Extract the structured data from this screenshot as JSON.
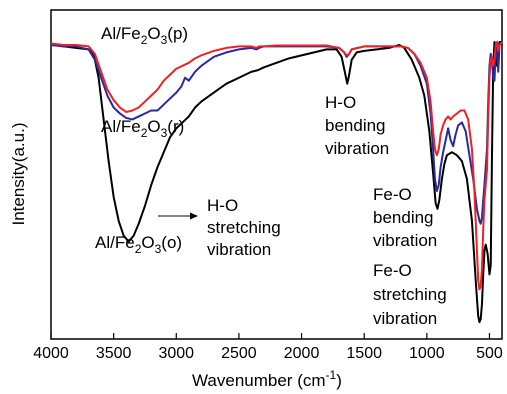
{
  "chart_data": {
    "type": "line",
    "title": "",
    "xlabel": "Wavenumber (cm",
    "xlabel_sup": "-1",
    "xlabel_end": ")",
    "ylabel": "Intensity(a.u.)",
    "xlim": [
      4000,
      400
    ],
    "x_reversed": true,
    "ylim": [
      0,
      1
    ],
    "y_ticks_labeled": false,
    "grid": false,
    "x_ticks": [
      {
        "value": 4000,
        "label": "4000"
      },
      {
        "value": 3500,
        "label": "3500"
      },
      {
        "value": 3000,
        "label": "3000"
      },
      {
        "value": 2500,
        "label": "2500"
      },
      {
        "value": 2000,
        "label": "2000"
      },
      {
        "value": 1500,
        "label": "1500"
      },
      {
        "value": 1000,
        "label": "1000"
      },
      {
        "value": 500,
        "label": "500"
      }
    ],
    "series": [
      {
        "color": "#000000",
        "points": [
          [
            4000,
            0.97
          ],
          [
            3900,
            0.965
          ],
          [
            3800,
            0.96
          ],
          [
            3700,
            0.955
          ],
          [
            3660,
            0.94
          ],
          [
            3620,
            0.86
          ],
          [
            3580,
            0.72
          ],
          [
            3540,
            0.58
          ],
          [
            3500,
            0.46
          ],
          [
            3460,
            0.38
          ],
          [
            3420,
            0.33
          ],
          [
            3380,
            0.31
          ],
          [
            3340,
            0.33
          ],
          [
            3300,
            0.37
          ],
          [
            3250,
            0.43
          ],
          [
            3200,
            0.5
          ],
          [
            3150,
            0.56
          ],
          [
            3100,
            0.61
          ],
          [
            3050,
            0.66
          ],
          [
            3000,
            0.69
          ],
          [
            2950,
            0.71
          ],
          [
            2900,
            0.73
          ],
          [
            2850,
            0.76
          ],
          [
            2800,
            0.78
          ],
          [
            2700,
            0.81
          ],
          [
            2600,
            0.84
          ],
          [
            2500,
            0.86
          ],
          [
            2400,
            0.88
          ],
          [
            2350,
            0.885
          ],
          [
            2300,
            0.895
          ],
          [
            2200,
            0.91
          ],
          [
            2100,
            0.925
          ],
          [
            2000,
            0.935
          ],
          [
            1900,
            0.945
          ],
          [
            1800,
            0.955
          ],
          [
            1720,
            0.955
          ],
          [
            1680,
            0.93
          ],
          [
            1650,
            0.87
          ],
          [
            1635,
            0.84
          ],
          [
            1620,
            0.87
          ],
          [
            1600,
            0.92
          ],
          [
            1560,
            0.945
          ],
          [
            1500,
            0.95
          ],
          [
            1400,
            0.955
          ],
          [
            1300,
            0.96
          ],
          [
            1220,
            0.97
          ],
          [
            1180,
            0.96
          ],
          [
            1120,
            0.92
          ],
          [
            1060,
            0.86
          ],
          [
            1020,
            0.8
          ],
          [
            980,
            0.68
          ],
          [
            950,
            0.54
          ],
          [
            930,
            0.44
          ],
          [
            915,
            0.42
          ],
          [
            900,
            0.45
          ],
          [
            880,
            0.52
          ],
          [
            860,
            0.57
          ],
          [
            840,
            0.6
          ],
          [
            800,
            0.61
          ],
          [
            760,
            0.6
          ],
          [
            720,
            0.58
          ],
          [
            680,
            0.52
          ],
          [
            640,
            0.38
          ],
          [
            610,
            0.18
          ],
          [
            590,
            0.06
          ],
          [
            580,
            0.04
          ],
          [
            570,
            0.05
          ],
          [
            560,
            0.1
          ],
          [
            550,
            0.2
          ],
          [
            540,
            0.28
          ],
          [
            530,
            0.3
          ],
          [
            515,
            0.27
          ],
          [
            500,
            0.2
          ],
          [
            490,
            0.23
          ],
          [
            480,
            0.6
          ],
          [
            470,
            0.9
          ],
          [
            460,
            0.98
          ],
          [
            450,
            0.95
          ],
          [
            440,
            0.9
          ],
          [
            430,
            0.95
          ],
          [
            420,
            0.98
          ],
          [
            400,
            0.98
          ]
        ]
      },
      {
        "color": "#2a2aa0",
        "points": [
          [
            4000,
            0.97
          ],
          [
            3900,
            0.965
          ],
          [
            3800,
            0.965
          ],
          [
            3750,
            0.96
          ],
          [
            3700,
            0.955
          ],
          [
            3650,
            0.92
          ],
          [
            3600,
            0.86
          ],
          [
            3550,
            0.8
          ],
          [
            3500,
            0.76
          ],
          [
            3450,
            0.74
          ],
          [
            3400,
            0.725
          ],
          [
            3350,
            0.72
          ],
          [
            3300,
            0.73
          ],
          [
            3250,
            0.74
          ],
          [
            3200,
            0.75
          ],
          [
            3150,
            0.75
          ],
          [
            3100,
            0.77
          ],
          [
            3050,
            0.79
          ],
          [
            3000,
            0.81
          ],
          [
            2960,
            0.83
          ],
          [
            2930,
            0.86
          ],
          [
            2900,
            0.85
          ],
          [
            2850,
            0.88
          ],
          [
            2800,
            0.9
          ],
          [
            2700,
            0.93
          ],
          [
            2600,
            0.945
          ],
          [
            2500,
            0.955
          ],
          [
            2400,
            0.96
          ],
          [
            2360,
            0.955
          ],
          [
            2340,
            0.96
          ],
          [
            2300,
            0.965
          ],
          [
            2200,
            0.965
          ],
          [
            2100,
            0.965
          ],
          [
            2000,
            0.965
          ],
          [
            1900,
            0.965
          ],
          [
            1800,
            0.965
          ],
          [
            1700,
            0.96
          ],
          [
            1660,
            0.945
          ],
          [
            1640,
            0.93
          ],
          [
            1620,
            0.94
          ],
          [
            1600,
            0.955
          ],
          [
            1500,
            0.965
          ],
          [
            1400,
            0.965
          ],
          [
            1300,
            0.965
          ],
          [
            1200,
            0.965
          ],
          [
            1150,
            0.96
          ],
          [
            1100,
            0.94
          ],
          [
            1050,
            0.9
          ],
          [
            1000,
            0.84
          ],
          [
            970,
            0.74
          ],
          [
            950,
            0.62
          ],
          [
            935,
            0.52
          ],
          [
            920,
            0.48
          ],
          [
            905,
            0.5
          ],
          [
            890,
            0.56
          ],
          [
            870,
            0.61
          ],
          [
            850,
            0.65
          ],
          [
            830,
            0.69
          ],
          [
            810,
            0.65
          ],
          [
            790,
            0.63
          ],
          [
            770,
            0.67
          ],
          [
            750,
            0.7
          ],
          [
            720,
            0.71
          ],
          [
            690,
            0.68
          ],
          [
            660,
            0.6
          ],
          [
            630,
            0.52
          ],
          [
            600,
            0.42
          ],
          [
            580,
            0.38
          ],
          [
            570,
            0.37
          ],
          [
            560,
            0.39
          ],
          [
            550,
            0.45
          ],
          [
            540,
            0.5
          ],
          [
            520,
            0.62
          ],
          [
            510,
            0.78
          ],
          [
            500,
            0.9
          ],
          [
            490,
            0.94
          ],
          [
            480,
            0.92
          ],
          [
            470,
            0.86
          ],
          [
            460,
            0.85
          ],
          [
            450,
            0.95
          ],
          [
            440,
            0.97
          ],
          [
            430,
            0.88
          ],
          [
            420,
            0.97
          ],
          [
            400,
            0.98
          ]
        ]
      },
      {
        "color": "#ee2222",
        "points": [
          [
            4000,
            0.975
          ],
          [
            3900,
            0.97
          ],
          [
            3800,
            0.97
          ],
          [
            3700,
            0.965
          ],
          [
            3650,
            0.94
          ],
          [
            3600,
            0.88
          ],
          [
            3550,
            0.82
          ],
          [
            3500,
            0.785
          ],
          [
            3450,
            0.76
          ],
          [
            3400,
            0.745
          ],
          [
            3350,
            0.75
          ],
          [
            3300,
            0.76
          ],
          [
            3250,
            0.78
          ],
          [
            3200,
            0.8
          ],
          [
            3150,
            0.82
          ],
          [
            3100,
            0.85
          ],
          [
            3050,
            0.87
          ],
          [
            3000,
            0.89
          ],
          [
            2950,
            0.9
          ],
          [
            2900,
            0.91
          ],
          [
            2850,
            0.925
          ],
          [
            2800,
            0.935
          ],
          [
            2700,
            0.95
          ],
          [
            2600,
            0.96
          ],
          [
            2500,
            0.965
          ],
          [
            2400,
            0.965
          ],
          [
            2360,
            0.96
          ],
          [
            2340,
            0.965
          ],
          [
            2300,
            0.965
          ],
          [
            2200,
            0.968
          ],
          [
            2100,
            0.968
          ],
          [
            2000,
            0.968
          ],
          [
            1900,
            0.968
          ],
          [
            1800,
            0.968
          ],
          [
            1700,
            0.96
          ],
          [
            1660,
            0.945
          ],
          [
            1640,
            0.935
          ],
          [
            1620,
            0.94
          ],
          [
            1600,
            0.955
          ],
          [
            1500,
            0.965
          ],
          [
            1400,
            0.965
          ],
          [
            1300,
            0.965
          ],
          [
            1200,
            0.965
          ],
          [
            1150,
            0.96
          ],
          [
            1100,
            0.94
          ],
          [
            1050,
            0.91
          ],
          [
            1000,
            0.86
          ],
          [
            970,
            0.78
          ],
          [
            950,
            0.68
          ],
          [
            935,
            0.62
          ],
          [
            920,
            0.6
          ],
          [
            905,
            0.62
          ],
          [
            890,
            0.67
          ],
          [
            870,
            0.7
          ],
          [
            850,
            0.72
          ],
          [
            830,
            0.73
          ],
          [
            810,
            0.72
          ],
          [
            790,
            0.73
          ],
          [
            760,
            0.74
          ],
          [
            730,
            0.75
          ],
          [
            700,
            0.75
          ],
          [
            670,
            0.72
          ],
          [
            640,
            0.62
          ],
          [
            620,
            0.48
          ],
          [
            600,
            0.28
          ],
          [
            590,
            0.18
          ],
          [
            580,
            0.15
          ],
          [
            570,
            0.16
          ],
          [
            560,
            0.22
          ],
          [
            550,
            0.35
          ],
          [
            540,
            0.45
          ],
          [
            530,
            0.5
          ],
          [
            520,
            0.55
          ],
          [
            510,
            0.72
          ],
          [
            500,
            0.86
          ],
          [
            490,
            0.92
          ],
          [
            480,
            0.93
          ],
          [
            470,
            0.9
          ],
          [
            460,
            0.92
          ],
          [
            450,
            0.97
          ],
          [
            440,
            0.98
          ],
          [
            430,
            0.95
          ],
          [
            420,
            0.97
          ],
          [
            400,
            0.98
          ]
        ]
      }
    ],
    "annotations": {
      "label_p": {
        "pre": "Al/Fe",
        "sub1": "2",
        "mid": "O",
        "sub2": "3",
        "post": "(p)"
      },
      "label_r": {
        "pre": "Al/Fe",
        "sub1": "2",
        "mid": "O",
        "sub2": "3",
        "post": "(r)"
      },
      "label_o": {
        "pre": "Al/Fe",
        "sub1": "2",
        "mid": "O",
        "sub2": "3",
        "post": "(o)"
      },
      "stretch_oh": [
        "H-O",
        "stretching",
        "vibration"
      ],
      "bend_oh": [
        "H-O",
        "bending",
        "vibration"
      ],
      "bend_feo": [
        "Fe-O",
        "bending",
        "vibration"
      ],
      "stretch_feo": [
        "Fe-O",
        "stretching",
        "vibration"
      ]
    }
  }
}
